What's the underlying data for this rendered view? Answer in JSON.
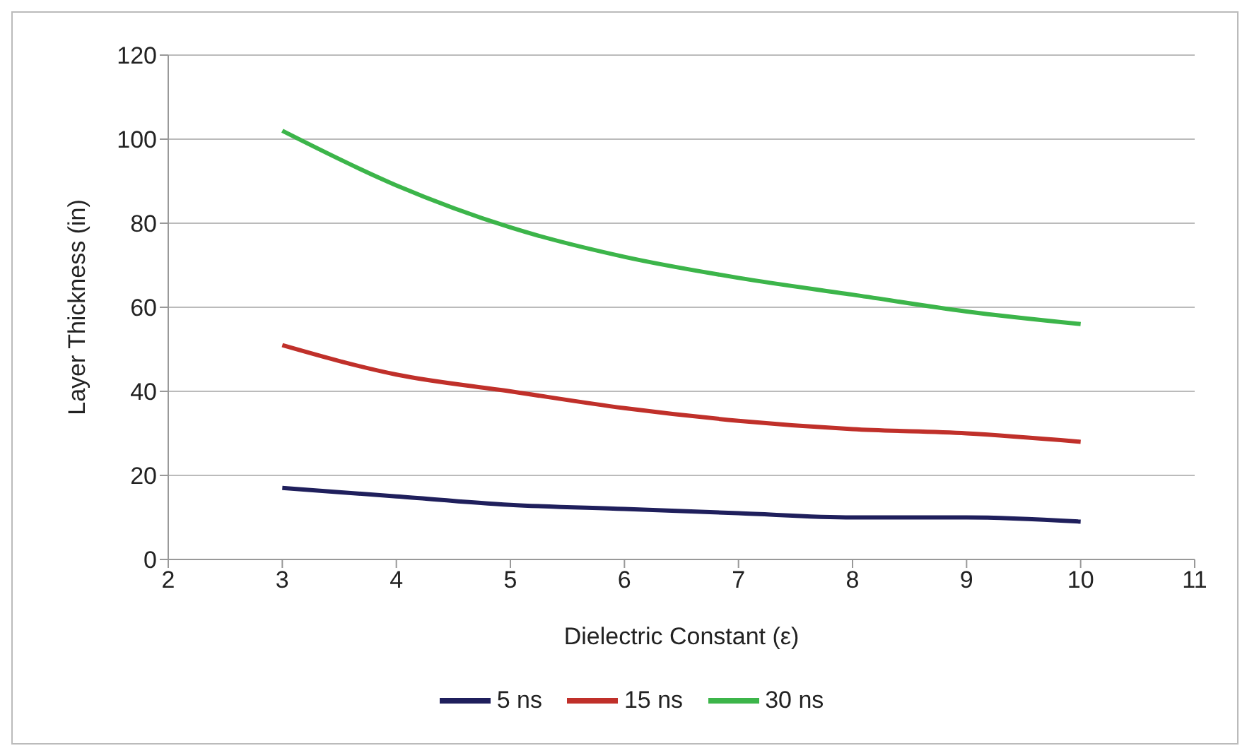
{
  "chart_data": {
    "type": "line",
    "xlabel": "Dielectric Constant (ε)",
    "ylabel": "Layer Thickness (in)",
    "x": [
      3,
      4,
      5,
      6,
      7,
      8,
      9,
      10
    ],
    "series": [
      {
        "name": "5 ns",
        "color": "#1f1f5c",
        "values": [
          17,
          15,
          13,
          12,
          11,
          10,
          10,
          9
        ]
      },
      {
        "name": "15 ns",
        "color": "#c0302a",
        "values": [
          51,
          44,
          40,
          36,
          33,
          31,
          30,
          28
        ]
      },
      {
        "name": "30 ns",
        "color": "#3cb54a",
        "values": [
          102,
          89,
          79,
          72,
          67,
          63,
          59,
          56
        ]
      }
    ],
    "xlim": [
      2,
      11
    ],
    "xticks": [
      2,
      3,
      4,
      5,
      6,
      7,
      8,
      9,
      10,
      11
    ],
    "ylim": [
      0,
      120
    ],
    "yticks": [
      0,
      20,
      40,
      60,
      80,
      100,
      120
    ],
    "grid": "y",
    "legend": "bottom",
    "marker": "none",
    "line_style": "solid"
  }
}
